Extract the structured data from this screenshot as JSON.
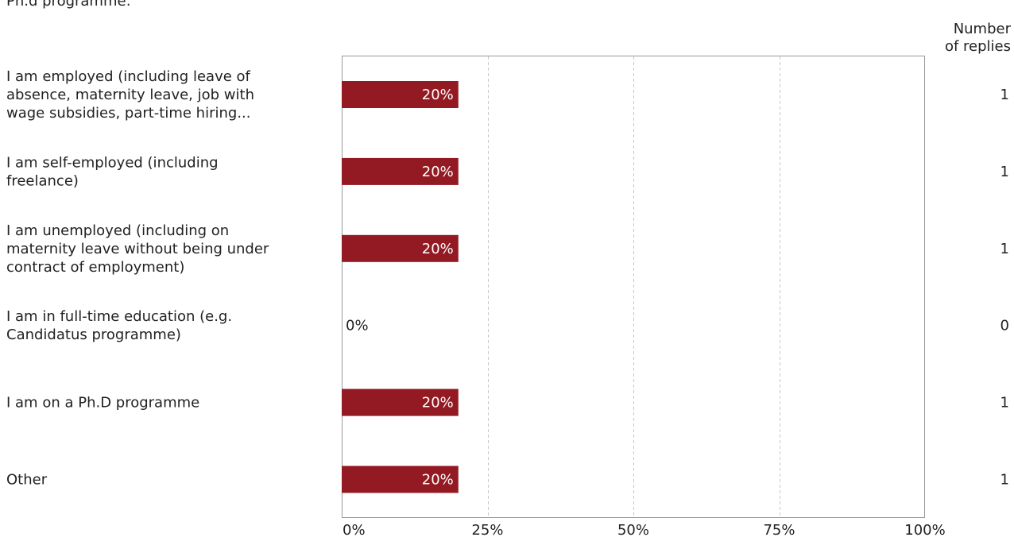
{
  "caption": "Ph.d programme:",
  "column_header": {
    "line1": "Number",
    "line2": "of replies"
  },
  "colors": {
    "bar": "#931a22",
    "frame": "#999999",
    "grid": "#c8c8c8",
    "text": "#222222",
    "bar_label": "#ffffff"
  },
  "chart_data": {
    "type": "bar",
    "orientation": "horizontal",
    "categories": [
      [
        "I am employed (including leave of",
        "absence, maternity leave, job with",
        "wage subsidies, part-time hiring..."
      ],
      [
        "I am self-employed (including",
        "freelance)"
      ],
      [
        "I am unemployed (including on",
        "maternity leave without being under",
        "contract of employment)"
      ],
      [
        "I am in full-time education (e.g.",
        "Candidatus programme)"
      ],
      [
        "I am on a Ph.D programme"
      ],
      [
        "Other"
      ]
    ],
    "values": [
      20,
      20,
      20,
      0,
      20,
      20
    ],
    "value_labels": [
      "20%",
      "20%",
      "20%",
      "0%",
      "20%",
      "20%"
    ],
    "replies": [
      "1",
      "1",
      "1",
      "0",
      "1",
      "1"
    ],
    "xlim": [
      0,
      100
    ],
    "xticks": [
      0,
      25,
      50,
      75,
      100
    ],
    "xtick_labels": [
      "0%",
      "25%",
      "50%",
      "75%",
      "100%"
    ],
    "grid": "vertical dashed at 25, 50, 75"
  }
}
